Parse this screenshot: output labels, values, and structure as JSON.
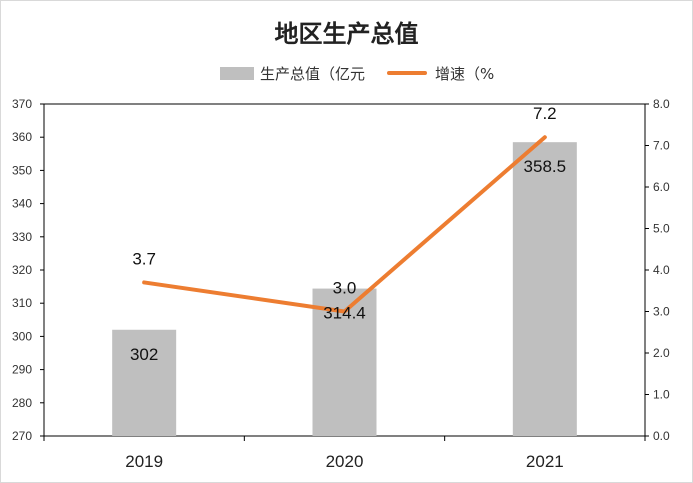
{
  "chart_data": {
    "type": "bar",
    "title": "地区生产总值",
    "categories": [
      "2019",
      "2020",
      "2021"
    ],
    "series": [
      {
        "name": "生产总值（亿元",
        "type": "bar",
        "axis": "left",
        "values": [
          302,
          314.4,
          358.5
        ],
        "labels": [
          "302",
          "314.4",
          "358.5"
        ],
        "color": "#bfbfbf"
      },
      {
        "name": "增速（%",
        "type": "line",
        "axis": "right",
        "values": [
          3.7,
          3.0,
          7.2
        ],
        "labels": [
          "3.7",
          "3.0",
          "7.2"
        ],
        "color": "#ed7d31"
      }
    ],
    "y_left": {
      "min": 270,
      "max": 370,
      "ticks": [
        "270",
        "280",
        "290",
        "300",
        "310",
        "320",
        "330",
        "340",
        "350",
        "360",
        "370"
      ]
    },
    "y_right": {
      "min": 0,
      "max": 8,
      "ticks": [
        "0.0",
        "1.0",
        "2.0",
        "3.0",
        "4.0",
        "5.0",
        "6.0",
        "7.0",
        "8.0"
      ]
    },
    "legend_position": "top-center",
    "grid": false
  }
}
